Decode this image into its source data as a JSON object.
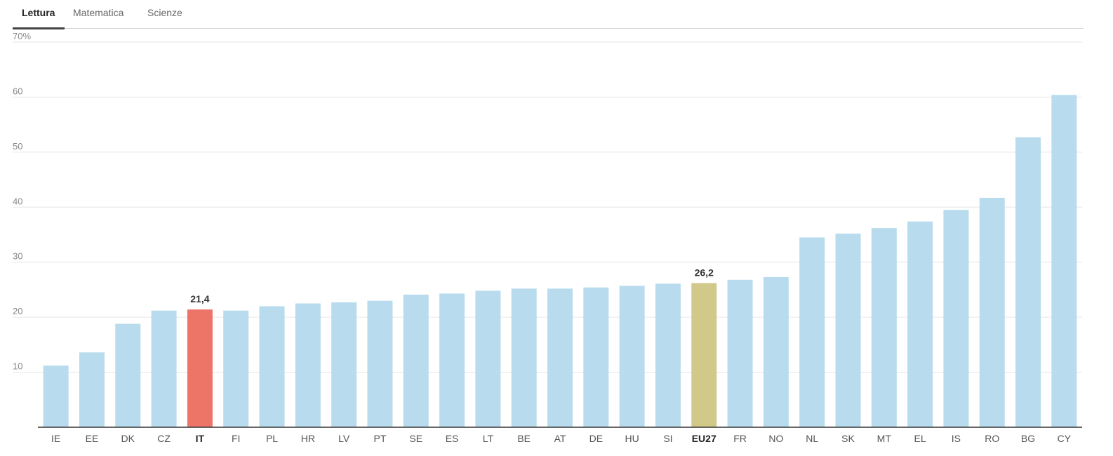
{
  "tabs": [
    {
      "label": "Lettura",
      "active": true
    },
    {
      "label": "Matematica",
      "active": false
    },
    {
      "label": "Scienze",
      "active": false
    }
  ],
  "colors": {
    "bar": "#b8dced",
    "highlight_it": "#ec7568",
    "highlight_eu": "#d1c98a",
    "grid": "#e6e6e6",
    "axis": "#333333",
    "tick_text": "#888888",
    "category_text": "#555555"
  },
  "chart_data": {
    "type": "bar",
    "title": "",
    "xlabel": "",
    "ylabel": "",
    "ylim": [
      0,
      70
    ],
    "ytick_values": [
      10,
      20,
      30,
      40,
      50,
      60,
      70
    ],
    "ytick_labels": [
      "10",
      "20",
      "30",
      "40",
      "50",
      "60",
      "70%"
    ],
    "grid": true,
    "categories": [
      "IE",
      "EE",
      "DK",
      "CZ",
      "IT",
      "FI",
      "PL",
      "HR",
      "LV",
      "PT",
      "SE",
      "ES",
      "LT",
      "BE",
      "AT",
      "DE",
      "HU",
      "SI",
      "EU27",
      "FR",
      "NO",
      "NL",
      "SK",
      "MT",
      "EL",
      "IS",
      "RO",
      "BG",
      "CY"
    ],
    "values": [
      11.2,
      13.6,
      18.8,
      21.2,
      21.4,
      21.2,
      22.0,
      22.5,
      22.7,
      23.0,
      24.1,
      24.3,
      24.8,
      25.2,
      25.2,
      25.4,
      25.7,
      26.1,
      26.2,
      26.8,
      27.3,
      34.5,
      35.2,
      36.2,
      37.4,
      39.5,
      41.7,
      52.7,
      60.4
    ],
    "highlights": [
      {
        "category": "IT",
        "label": "21,4",
        "color_key": "highlight_it"
      },
      {
        "category": "EU27",
        "label": "26,2",
        "color_key": "highlight_eu"
      }
    ]
  }
}
